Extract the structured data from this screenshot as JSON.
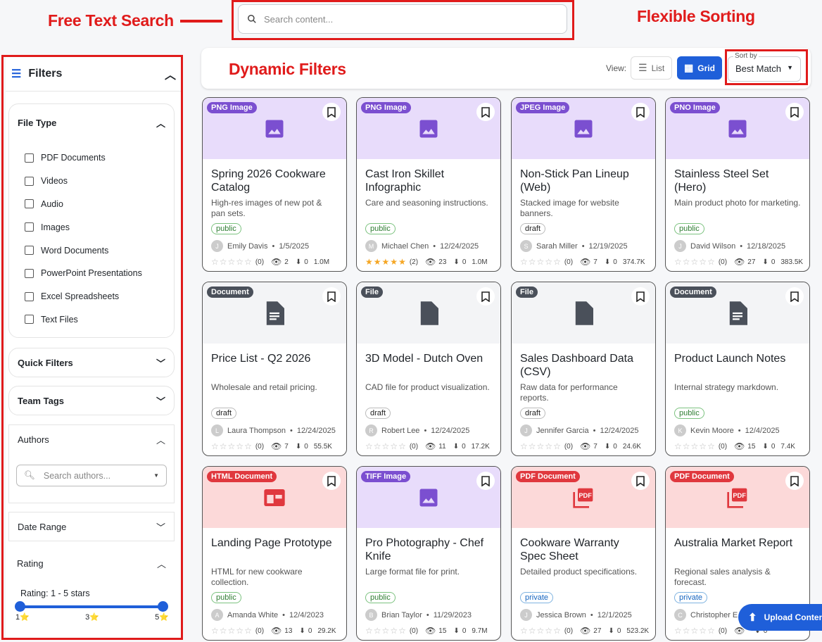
{
  "annotations": {
    "search": "Free Text Search",
    "sorting": "Flexible Sorting",
    "filters": "Dynamic Filters"
  },
  "search": {
    "placeholder": "Search content..."
  },
  "toolbar": {
    "view_label": "View:",
    "list": "List",
    "grid": "Grid",
    "sort_label": "Sort by",
    "sort_value": "Best Match"
  },
  "colors": {
    "accent": "#1f5fd9",
    "annotation": "#e01b1b",
    "image": "#7b4fd0",
    "image_bg": "#e8dcfb",
    "doc": "#4a505a",
    "doc_bg": "#f3f4f6",
    "pdf": "#e0383e",
    "pdf_bg": "#fcd9d9"
  },
  "filters": {
    "title": "Filters",
    "file_type": {
      "title": "File Type",
      "options": [
        "PDF Documents",
        "Videos",
        "Audio",
        "Images",
        "Word Documents",
        "PowerPoint Presentations",
        "Excel Spreadsheets",
        "Text Files"
      ]
    },
    "quick": "Quick Filters",
    "tags": "Team Tags",
    "authors": {
      "title": "Authors",
      "placeholder": "Search authors..."
    },
    "date": "Date Range",
    "rating": {
      "title": "Rating",
      "label": "Rating: 1 - 5 stars",
      "min": "1⭐",
      "mid": "3⭐",
      "max": "5⭐",
      "range": [
        1,
        5
      ]
    }
  },
  "cards": [
    {
      "type": "PNG Image",
      "kind": "image",
      "title": "Spring 2026 Cookware Catalog",
      "desc": "High-res images of new pot & pan sets.",
      "status": "public",
      "initial": "J",
      "author": "Emily Davis",
      "date": "1/5/2025",
      "rating": 0,
      "count": "(0)",
      "views": "2",
      "downloads": "0",
      "size": "1.0M"
    },
    {
      "type": "PNG Image",
      "kind": "image",
      "title": "Cast Iron Skillet Infographic",
      "desc": "Care and seasoning instructions.",
      "status": "public",
      "initial": "M",
      "author": "Michael Chen",
      "date": "12/24/2025",
      "rating": 5,
      "count": "(2)",
      "views": "23",
      "downloads": "0",
      "size": "1.0M"
    },
    {
      "type": "JPEG Image",
      "kind": "image",
      "title": "Non-Stick Pan Lineup (Web)",
      "desc": "Stacked image for website banners.",
      "status": "draft",
      "initial": "S",
      "author": "Sarah Miller",
      "date": "12/19/2025",
      "rating": 0,
      "count": "(0)",
      "views": "7",
      "downloads": "0",
      "size": "374.7K"
    },
    {
      "type": "PNO Image",
      "kind": "image",
      "title": "Stainless Steel Set (Hero)",
      "desc": "Main product photo for marketing.",
      "status": "public",
      "initial": "J",
      "author": "David Wilson",
      "date": "12/18/2025",
      "rating": 0,
      "count": "(0)",
      "views": "27",
      "downloads": "0",
      "size": "383.5K"
    },
    {
      "type": "Document",
      "kind": "doc",
      "title": "Price List - Q2 2026",
      "desc": "Wholesale and retail pricing.",
      "status": "draft",
      "initial": "L",
      "author": "Laura Thompson",
      "date": "12/24/2025",
      "rating": 0,
      "count": "(0)",
      "views": "7",
      "downloads": "0",
      "size": "55.5K"
    },
    {
      "type": "File",
      "kind": "file",
      "title": "3D Model - Dutch Oven",
      "desc": "CAD file for product visualization.",
      "status": "draft",
      "initial": "R",
      "author": "Robert Lee",
      "date": "12/24/2025",
      "rating": 0,
      "count": "(0)",
      "views": "11",
      "downloads": "0",
      "size": "17.2K"
    },
    {
      "type": "File",
      "kind": "file",
      "title": "Sales Dashboard Data (CSV)",
      "desc": "Raw data for performance reports.",
      "status": "draft",
      "initial": "J",
      "author": "Jennifer Garcia",
      "date": "12/24/2025",
      "rating": 0,
      "count": "(0)",
      "views": "7",
      "downloads": "0",
      "size": "24.6K"
    },
    {
      "type": "Document",
      "kind": "doc",
      "title": "Product Launch Notes",
      "desc": "Internal strategy markdown.",
      "status": "public",
      "initial": "K",
      "author": "Kevin Moore",
      "date": "12/4/2025",
      "rating": 0,
      "count": "(0)",
      "views": "15",
      "downloads": "0",
      "size": "7.4K"
    },
    {
      "type": "HTML Document",
      "kind": "html",
      "title": "Landing Page Prototype",
      "desc": "HTML for new cookware collection.",
      "status": "public",
      "initial": "A",
      "author": "Amanda White",
      "date": "12/4/2023",
      "rating": 0,
      "count": "(0)",
      "views": "13",
      "downloads": "0",
      "size": "29.2K"
    },
    {
      "type": "TIFF Image",
      "kind": "image",
      "title": "Pro Photography - Chef Knife",
      "desc": "Large format file for print.",
      "status": "public",
      "initial": "B",
      "author": "Brian Taylor",
      "date": "11/29/2023",
      "rating": 0,
      "count": "(0)",
      "views": "15",
      "downloads": "0",
      "size": "9.7M"
    },
    {
      "type": "PDF Document",
      "kind": "pdf",
      "title": "Cookware Warranty Spec Sheet",
      "desc": "Detailed product specifications.",
      "status": "private",
      "initial": "J",
      "author": "Jessica Brown",
      "date": "12/1/2025",
      "rating": 0,
      "count": "(0)",
      "views": "27",
      "downloads": "0",
      "size": "523.2K"
    },
    {
      "type": "PDF Document",
      "kind": "pdf",
      "title": "Australia Market Report",
      "desc": "Regional sales analysis & forecast.",
      "status": "private",
      "initial": "C",
      "author": "Christopher E",
      "date": "",
      "rating": 0,
      "count": "(0)",
      "views": "",
      "downloads": "0",
      "size": ""
    }
  ],
  "upload": "Upload Content"
}
